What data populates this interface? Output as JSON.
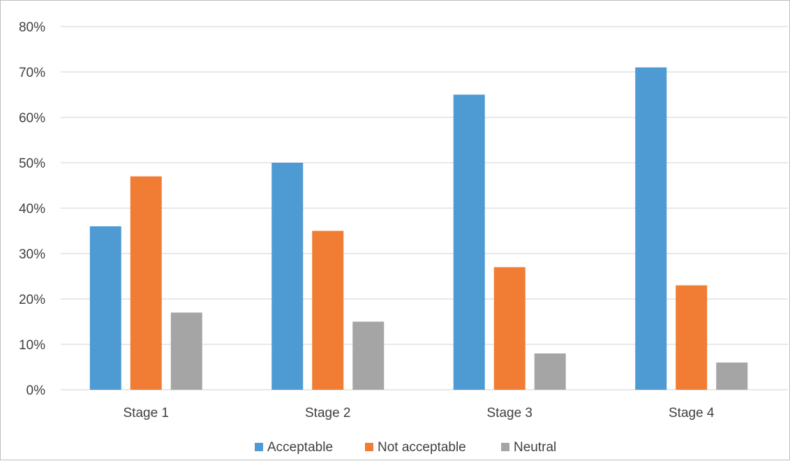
{
  "chart_data": {
    "type": "bar",
    "title": "",
    "xlabel": "",
    "ylabel": "",
    "categories": [
      "Stage 1",
      "Stage 2",
      "Stage 3",
      "Stage 4"
    ],
    "series": [
      {
        "name": "Acceptable",
        "color": "#4e9ad3",
        "values": [
          36,
          50,
          65,
          71
        ]
      },
      {
        "name": "Not acceptable",
        "color": "#f07d33",
        "values": [
          47,
          35,
          27,
          23
        ]
      },
      {
        "name": "Neutral",
        "color": "#a5a5a5",
        "values": [
          17,
          15,
          8,
          6
        ]
      }
    ],
    "ylim": [
      0,
      80
    ],
    "yticks": [
      0,
      10,
      20,
      30,
      40,
      50,
      60,
      70,
      80
    ],
    "ytick_labels": [
      "0%",
      "10%",
      "20%",
      "30%",
      "40%",
      "50%",
      "60%",
      "70%",
      "80%"
    ],
    "grid": true,
    "legend_position": "bottom-center",
    "gridline_color": "#d9d9d9"
  }
}
